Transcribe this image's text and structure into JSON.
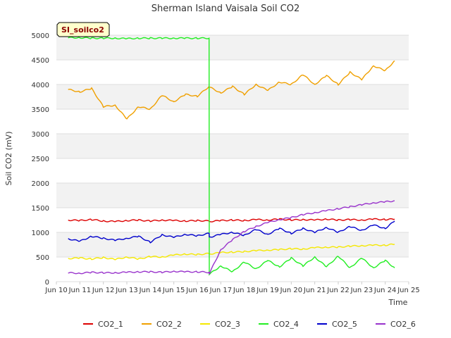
{
  "chart_data": {
    "type": "line",
    "title": "Sherman Island Vaisala Soil CO2",
    "xlabel": "Time",
    "ylabel": "Soil CO2 (mV)",
    "badge": "SI_soilco2",
    "x_ticks": [
      "Jun 10",
      "Jun 11",
      "Jun 12",
      "Jun 13",
      "Jun 14",
      "Jun 15",
      "Jun 16",
      "Jun 17",
      "Jun 18",
      "Jun 19",
      "Jun 20",
      "Jun 21",
      "Jun 22",
      "Jun 23",
      "Jun 24",
      "Jun 25"
    ],
    "xlim": [
      9.5,
      24.5
    ],
    "ylim": [
      0,
      5000
    ],
    "y_ticks": [
      0,
      500,
      1000,
      1500,
      2000,
      2500,
      3000,
      3500,
      4000,
      4500,
      5000
    ],
    "x": [
      10,
      10.5,
      11,
      11.5,
      12,
      12.5,
      13,
      13.5,
      14,
      14.5,
      15,
      15.5,
      16,
      16.01,
      16.5,
      17,
      17.5,
      18,
      18.5,
      19,
      19.5,
      20,
      20.5,
      21,
      21.5,
      22,
      22.5,
      23,
      23.5,
      23.9
    ],
    "series": [
      {
        "name": "CO2_1",
        "color": "#dd0000",
        "values": [
          1250,
          1240,
          1260,
          1230,
          1220,
          1240,
          1250,
          1230,
          1250,
          1240,
          1230,
          1240,
          1230,
          1220,
          1240,
          1250,
          1240,
          1260,
          1250,
          1270,
          1250,
          1260,
          1250,
          1270,
          1250,
          1260,
          1250,
          1270,
          1260,
          1270
        ]
      },
      {
        "name": "CO2_2",
        "color": "#f0a000",
        "values": [
          3900,
          3850,
          3920,
          3550,
          3580,
          3300,
          3550,
          3500,
          3780,
          3650,
          3800,
          3760,
          3960,
          3950,
          3830,
          3960,
          3800,
          4000,
          3880,
          4050,
          4000,
          4200,
          4000,
          4180,
          4000,
          4250,
          4100,
          4380,
          4280,
          4480
        ]
      },
      {
        "name": "CO2_3",
        "color": "#f5e800",
        "values": [
          470,
          480,
          460,
          490,
          450,
          500,
          460,
          510,
          500,
          540,
          560,
          550,
          570,
          560,
          590,
          600,
          610,
          630,
          640,
          650,
          670,
          660,
          690,
          700,
          700,
          720,
          730,
          740,
          740,
          760
        ]
      },
      {
        "name": "CO2_4",
        "color": "#22ee22",
        "values": [
          4950,
          4950,
          4940,
          4940,
          4940,
          4930,
          4940,
          4940,
          4940,
          4940,
          4940,
          4940,
          4940,
          150,
          320,
          200,
          400,
          260,
          430,
          300,
          480,
          320,
          500,
          300,
          520,
          280,
          480,
          280,
          430,
          280
        ]
      },
      {
        "name": "CO2_5",
        "color": "#0000cc",
        "values": [
          870,
          820,
          920,
          880,
          840,
          880,
          920,
          800,
          950,
          900,
          960,
          930,
          980,
          900,
          960,
          1000,
          940,
          1060,
          960,
          1080,
          980,
          1080,
          1000,
          1100,
          1000,
          1120,
          1040,
          1150,
          1080,
          1230
        ]
      },
      {
        "name": "CO2_6",
        "color": "#9933cc",
        "values": [
          180,
          170,
          190,
          180,
          180,
          190,
          200,
          200,
          190,
          210,
          200,
          200,
          190,
          160,
          650,
          850,
          1020,
          1120,
          1200,
          1260,
          1300,
          1360,
          1400,
          1440,
          1480,
          1520,
          1560,
          1600,
          1620,
          1640
        ]
      }
    ]
  }
}
